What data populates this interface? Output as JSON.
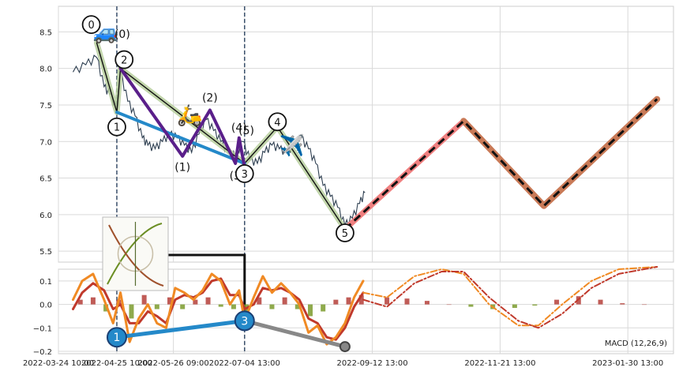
{
  "chart_data": [
    {
      "type": "line",
      "panel": "price",
      "grid": true,
      "ylim": [
        5.35,
        8.85
      ],
      "y_ticks": [
        5.5,
        6.0,
        6.5,
        7.0,
        7.5,
        8.0,
        8.5
      ],
      "y_tick_labels": [
        "5.5",
        "6.0",
        "6.5",
        "7.0",
        "7.5",
        "8.0",
        "8.5"
      ],
      "x_tick_labels": [
        "2022-03-24 10:00",
        "2022-04-25 10:00",
        "2022-05-26 09:00",
        "2022-07-04 13:00",
        "2022-09-12 13:00",
        "2022-11-21 13:00",
        "2023-01-30 13:00"
      ],
      "x_tick_dates": [
        "2022-03-24",
        "2022-04-25",
        "2022-05-26",
        "2022-07-04",
        "2022-09-12",
        "2022-11-21",
        "2023-01-30"
      ],
      "vertical_lines": [
        "2022-04-25",
        "2022-07-04"
      ],
      "price_series": {
        "x": [
          "2022-04-01",
          "2022-04-08",
          "2022-04-14",
          "2022-04-18",
          "2022-04-21",
          "2022-04-25",
          "2022-04-27",
          "2022-05-01",
          "2022-05-05",
          "2022-05-09",
          "2022-05-12",
          "2022-05-16",
          "2022-05-20",
          "2022-05-24",
          "2022-05-28",
          "2022-06-01",
          "2022-06-05",
          "2022-06-09",
          "2022-06-13",
          "2022-06-17",
          "2022-06-21",
          "2022-06-25",
          "2022-06-29",
          "2022-07-03",
          "2022-07-07",
          "2022-07-11",
          "2022-07-15",
          "2022-07-19",
          "2022-07-23",
          "2022-07-27",
          "2022-07-31",
          "2022-08-04",
          "2022-08-08",
          "2022-08-12",
          "2022-08-16",
          "2022-08-20",
          "2022-08-24",
          "2022-08-28",
          "2022-09-01",
          "2022-09-05",
          "2022-09-08"
        ],
        "values": [
          7.95,
          8.05,
          8.15,
          7.75,
          7.65,
          7.45,
          7.95,
          7.55,
          7.35,
          7.05,
          6.95,
          6.9,
          7.0,
          7.1,
          7.05,
          6.95,
          6.85,
          7.1,
          7.3,
          7.15,
          7.0,
          6.85,
          6.8,
          7.0,
          6.75,
          6.7,
          6.85,
          6.95,
          6.9,
          6.85,
          6.95,
          7.05,
          6.9,
          6.7,
          6.4,
          6.25,
          6.1,
          5.85,
          5.95,
          6.15,
          6.3
        ]
      },
      "series": [
        {
          "name": "",
          "color": "#b7cf9e",
          "x": [
            "2022-04-14",
            "2022-04-25",
            "2022-04-27",
            "2022-07-04",
            "2022-07-22",
            "2022-08-28"
          ],
          "values": [
            8.35,
            7.4,
            8.0,
            6.7,
            7.2,
            5.8
          ]
        },
        {
          "name": "",
          "color": "#111111",
          "x": [
            "2022-04-14",
            "2022-04-25",
            "2022-04-27",
            "2022-07-04",
            "2022-07-22",
            "2022-08-28"
          ],
          "values": [
            8.35,
            7.4,
            8.0,
            6.7,
            7.2,
            5.8
          ]
        },
        {
          "name": "",
          "color": "#2489c9",
          "x": [
            "2022-04-25",
            "2022-07-04"
          ],
          "values": [
            7.4,
            6.7
          ]
        },
        {
          "name": "",
          "color": "#5a1f8a",
          "x": [
            "2022-04-27",
            "2022-05-31",
            "2022-06-15",
            "2022-06-29",
            "2022-07-01",
            "2022-07-04"
          ],
          "values": [
            8.0,
            6.8,
            7.43,
            6.7,
            7.05,
            6.65
          ]
        },
        {
          "name": "",
          "color": "#f08080",
          "x": [
            "2022-08-28",
            "2022-11-01"
          ],
          "values": [
            5.8,
            7.28
          ]
        },
        {
          "name": "",
          "color": "#c97a57",
          "x": [
            "2022-11-01",
            "2022-12-15",
            "2023-02-15"
          ],
          "values": [
            7.28,
            6.12,
            7.58
          ]
        }
      ],
      "wave_labels": [
        {
          "text": "(0)",
          "x": "2022-04-28",
          "y": 8.42
        },
        {
          "text": "(1)",
          "x": "2022-05-31",
          "y": 6.6
        },
        {
          "text": "(2)",
          "x": "2022-06-15",
          "y": 7.55
        },
        {
          "text": "(3)",
          "x": "2022-06-30",
          "y": 6.48
        },
        {
          "text": "(4)",
          "x": "2022-07-01",
          "y": 7.14
        },
        {
          "text": "(5)",
          "x": "2022-07-05",
          "y": 7.1
        }
      ],
      "circle_labels": [
        {
          "text": "0",
          "x": "2022-04-11",
          "y": 8.6
        },
        {
          "text": "1",
          "x": "2022-04-25",
          "y": 7.2
        },
        {
          "text": "2",
          "x": "2022-04-29",
          "y": 8.12
        },
        {
          "text": "3",
          "x": "2022-07-04",
          "y": 6.56
        },
        {
          "text": "4",
          "x": "2022-07-22",
          "y": 7.27
        },
        {
          "text": "5",
          "x": "2022-08-28",
          "y": 5.75
        }
      ],
      "emoji_markers": [
        {
          "glyph": "🚙",
          "x": "2022-04-19",
          "y": 8.4
        },
        {
          "glyph": "🛵",
          "x": "2022-06-04",
          "y": 7.27
        },
        {
          "glyph": "✈️",
          "x": "2022-07-30",
          "y": 6.85
        }
      ]
    },
    {
      "type": "line",
      "panel": "macd",
      "title": "MACD (12,26,9)",
      "grid": true,
      "ylim": [
        -0.21,
        0.15
      ],
      "y_ticks": [
        -0.2,
        -0.1,
        0.0,
        0.1
      ],
      "y_tick_labels": [
        "−0.2",
        "−0.1",
        "0.0",
        "0.1"
      ],
      "macd_line": {
        "color": "#f08a24",
        "x": [
          "2022-04-01",
          "2022-04-06",
          "2022-04-12",
          "2022-04-18",
          "2022-04-23",
          "2022-04-27",
          "2022-05-02",
          "2022-05-07",
          "2022-05-12",
          "2022-05-17",
          "2022-05-22",
          "2022-05-27",
          "2022-06-01",
          "2022-06-06",
          "2022-06-11",
          "2022-06-16",
          "2022-06-21",
          "2022-06-26",
          "2022-07-01",
          "2022-07-04",
          "2022-07-09",
          "2022-07-14",
          "2022-07-19",
          "2022-07-24",
          "2022-07-29",
          "2022-08-03",
          "2022-08-08",
          "2022-08-13",
          "2022-08-18",
          "2022-08-23",
          "2022-08-28",
          "2022-09-02",
          "2022-09-07"
        ],
        "values": [
          0.02,
          0.1,
          0.13,
          0.02,
          -0.08,
          0.05,
          -0.16,
          -0.06,
          0.0,
          -0.08,
          -0.1,
          0.07,
          0.05,
          0.02,
          0.06,
          0.13,
          0.1,
          0.0,
          0.06,
          -0.07,
          0.03,
          0.12,
          0.05,
          0.09,
          0.05,
          0.0,
          -0.12,
          -0.09,
          -0.17,
          -0.14,
          -0.08,
          0.03,
          0.1
        ]
      },
      "signal_line": {
        "color": "#c0392b",
        "x": [
          "2022-04-01",
          "2022-04-06",
          "2022-04-12",
          "2022-04-18",
          "2022-04-23",
          "2022-04-27",
          "2022-05-02",
          "2022-05-07",
          "2022-05-12",
          "2022-05-17",
          "2022-05-22",
          "2022-05-27",
          "2022-06-01",
          "2022-06-06",
          "2022-06-11",
          "2022-06-16",
          "2022-06-21",
          "2022-06-26",
          "2022-07-01",
          "2022-07-04",
          "2022-07-09",
          "2022-07-14",
          "2022-07-19",
          "2022-07-24",
          "2022-07-29",
          "2022-08-03",
          "2022-08-08",
          "2022-08-13",
          "2022-08-18",
          "2022-08-23",
          "2022-08-28",
          "2022-09-02",
          "2022-09-07"
        ],
        "values": [
          -0.02,
          0.05,
          0.09,
          0.06,
          -0.02,
          0.0,
          -0.08,
          -0.08,
          -0.03,
          -0.05,
          -0.08,
          0.02,
          0.04,
          0.03,
          0.05,
          0.1,
          0.11,
          0.04,
          0.04,
          -0.02,
          0.0,
          0.07,
          0.06,
          0.07,
          0.05,
          0.02,
          -0.06,
          -0.08,
          -0.14,
          -0.15,
          -0.1,
          -0.01,
          0.05
        ]
      },
      "projection_lines": [
        {
          "color": "#f08a24",
          "x": [
            "2022-09-07",
            "2022-09-20",
            "2022-10-05",
            "2022-10-20",
            "2022-11-01",
            "2022-11-15",
            "2022-12-01",
            "2022-12-12",
            "2022-12-25",
            "2023-01-10",
            "2023-01-25",
            "2023-02-15"
          ],
          "values": [
            0.05,
            0.03,
            0.12,
            0.15,
            0.13,
            0.0,
            -0.09,
            -0.09,
            0.0,
            0.1,
            0.15,
            0.16
          ]
        },
        {
          "color": "#c0392b",
          "x": [
            "2022-09-07",
            "2022-09-20",
            "2022-10-05",
            "2022-10-20",
            "2022-11-01",
            "2022-11-15",
            "2022-12-01",
            "2022-12-12",
            "2022-12-25",
            "2023-01-10",
            "2023-01-25",
            "2023-02-15"
          ],
          "values": [
            0.02,
            -0.01,
            0.09,
            0.14,
            0.14,
            0.03,
            -0.07,
            -0.1,
            -0.04,
            0.07,
            0.13,
            0.16
          ]
        }
      ],
      "histogram": {
        "x": [
          "2022-04-05",
          "2022-04-12",
          "2022-04-19",
          "2022-04-26",
          "2022-05-03",
          "2022-05-10",
          "2022-05-17",
          "2022-05-24",
          "2022-05-31",
          "2022-06-07",
          "2022-06-14",
          "2022-06-21",
          "2022-06-28",
          "2022-07-05",
          "2022-07-12",
          "2022-07-19",
          "2022-07-26",
          "2022-08-02",
          "2022-08-09",
          "2022-08-16",
          "2022-08-23",
          "2022-08-30",
          "2022-09-06",
          "2022-09-20",
          "2022-10-01",
          "2022-10-12",
          "2022-10-24",
          "2022-11-05",
          "2022-11-17",
          "2022-11-29",
          "2022-12-10",
          "2022-12-22",
          "2023-01-03",
          "2023-01-15",
          "2023-01-27",
          "2023-02-08"
        ],
        "values": [
          0.02,
          0.03,
          -0.03,
          0.02,
          -0.06,
          0.04,
          -0.02,
          0.03,
          -0.02,
          0.02,
          0.03,
          -0.01,
          -0.02,
          -0.05,
          0.03,
          -0.02,
          0.03,
          -0.02,
          -0.05,
          -0.03,
          0.02,
          0.03,
          0.04,
          0.03,
          0.025,
          0.015,
          0.0,
          -0.01,
          -0.02,
          -0.015,
          -0.005,
          0.02,
          0.035,
          0.02,
          0.005,
          0.0
        ]
      },
      "trend_points": {
        "blue": [
          {
            "x": "2022-04-25",
            "y": -0.14
          },
          {
            "x": "2022-07-04",
            "y": -0.07
          }
        ],
        "gray": [
          {
            "x": "2022-07-04",
            "y": -0.07
          },
          {
            "x": "2022-08-28",
            "y": -0.18
          }
        ]
      },
      "circle_labels": [
        {
          "text": "1",
          "x": "2022-04-25",
          "y": -0.14
        },
        {
          "text": "3",
          "x": "2022-07-04",
          "y": -0.07
        }
      ]
    }
  ],
  "colors": {
    "grid": "#d9d9d9",
    "axis": "#cccccc",
    "price": "#2d3e50",
    "dashed_projection": "#111111",
    "vline": "#3a4f6a",
    "hist_pos": "#b5403a",
    "hist_neg": "#7b9b2d",
    "blue_ball": "#2489c9"
  }
}
